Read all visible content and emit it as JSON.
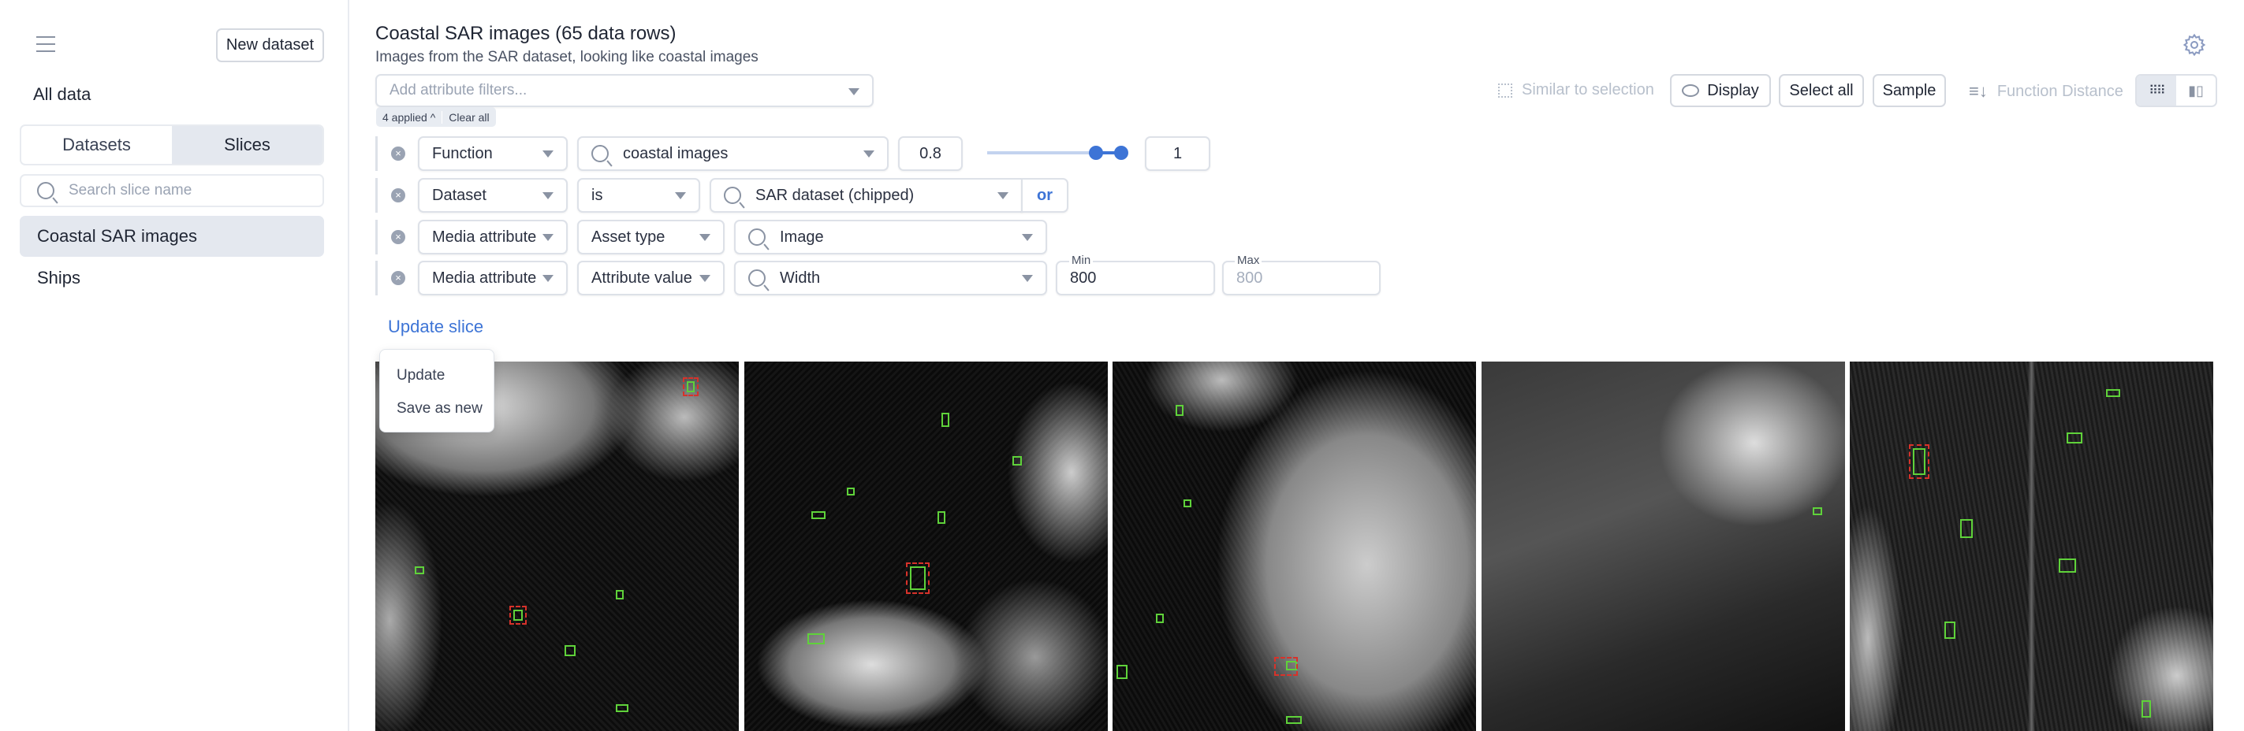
{
  "sidebar": {
    "menu_icon": "hamburger-icon",
    "new_dataset_label": "New dataset",
    "all_data_label": "All data",
    "tabs": [
      {
        "label": "Datasets",
        "active": false
      },
      {
        "label": "Slices",
        "active": true
      }
    ],
    "search_placeholder": "Search slice name",
    "items": [
      {
        "label": "Coastal SAR images",
        "selected": true
      },
      {
        "label": "Ships",
        "selected": false
      }
    ]
  },
  "header": {
    "title": "Coastal SAR images (65 data rows)",
    "subtitle": "Images from the SAR dataset, looking like coastal images",
    "settings_icon": "gear-icon"
  },
  "filters": {
    "add_placeholder": "Add attribute filters...",
    "applied_label": "4 applied",
    "clear_all_label": "Clear all",
    "rows": [
      {
        "field": "Function",
        "value": "coastal images",
        "min": "0.8",
        "max": "1",
        "range": [
          0.8,
          1
        ]
      },
      {
        "field": "Dataset",
        "operator": "is",
        "value": "SAR dataset (chipped)",
        "or_label": "or"
      },
      {
        "field": "Media attribute",
        "operator": "Asset type",
        "value": "Image"
      },
      {
        "field": "Media attribute",
        "operator": "Attribute value",
        "value": "Width",
        "min_label": "Min",
        "min_value": "800",
        "max_label": "Max",
        "max_placeholder": "800"
      }
    ]
  },
  "toolbar": {
    "similar_label": "Similar to selection",
    "display_label": "Display",
    "select_all_label": "Select all",
    "sample_label": "Sample",
    "sort_label": "Function Distance",
    "view_modes": [
      {
        "icon": "grid-icon",
        "active": true
      },
      {
        "icon": "bar-chart-icon",
        "active": false
      }
    ]
  },
  "update_slice": {
    "label": "Update slice",
    "menu": [
      "Update",
      "Save as new"
    ]
  },
  "colors": {
    "accent": "#3d74d6",
    "ground_truth_box": "#5fd23a",
    "prediction_box": "#d8322a"
  }
}
